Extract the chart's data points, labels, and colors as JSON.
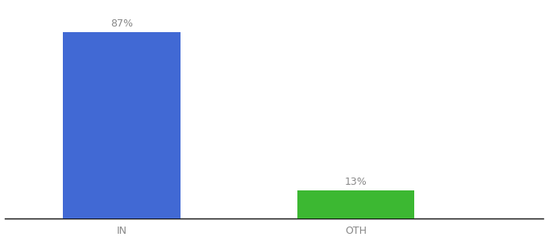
{
  "categories": [
    "IN",
    "OTH"
  ],
  "values": [
    87,
    13
  ],
  "bar_colors": [
    "#4169d4",
    "#3cb832"
  ],
  "label_texts": [
    "87%",
    "13%"
  ],
  "background_color": "#ffffff",
  "ylim": [
    0,
    100
  ],
  "bar_width": 0.5,
  "label_fontsize": 9,
  "tick_fontsize": 9,
  "tick_color": "#888888",
  "axis_line_color": "#111111",
  "label_color": "#888888",
  "x_positions": [
    1,
    2
  ],
  "xlim": [
    0.5,
    2.8
  ]
}
